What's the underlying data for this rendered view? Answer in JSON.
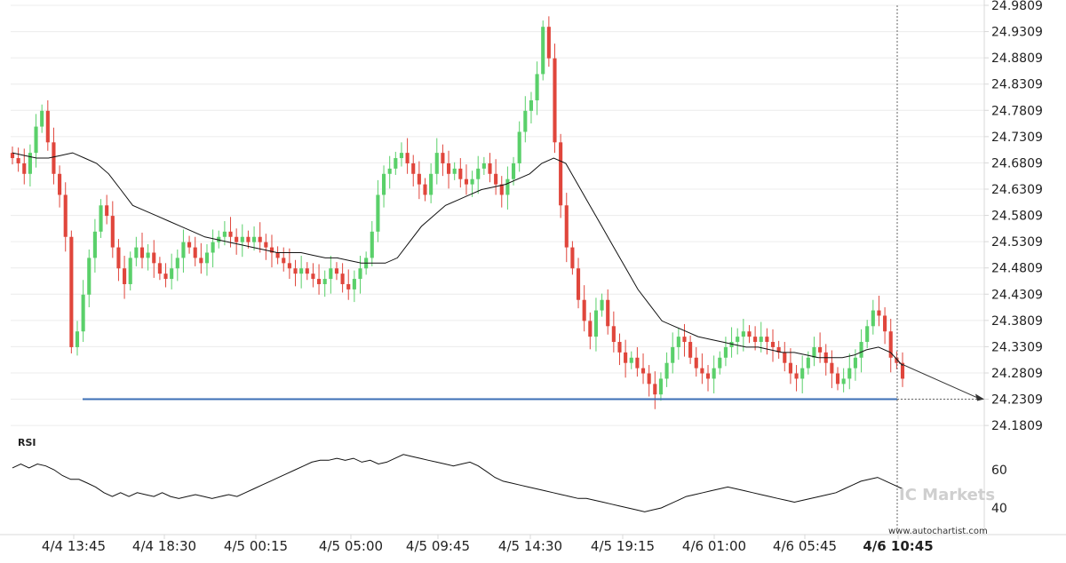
{
  "colors": {
    "up": "#5ad06a",
    "down": "#e0463c",
    "ma_line": "#111111",
    "support_line": "#3b6fb6",
    "rsi_line": "#111111",
    "grid": "#ececec",
    "axis": "#d8d8d8",
    "crosshair": "#666666"
  },
  "chart_data": {
    "type": "candlestick",
    "title": "",
    "price_axis": {
      "ticks": [
        "24.9809",
        "24.9309",
        "24.8809",
        "24.8309",
        "24.7809",
        "24.7309",
        "24.6809",
        "24.6309",
        "24.5809",
        "24.5309",
        "24.4809",
        "24.4309",
        "24.3809",
        "24.3309",
        "24.2809",
        "24.2309",
        "24.1809"
      ],
      "ylim": [
        24.1659,
        24.9809
      ],
      "grid": true,
      "position": "right"
    },
    "time_axis": {
      "ticks": [
        "4/4 13:45",
        "4/4 18:30",
        "4/5 00:15",
        "4/5 05:00",
        "4/5 09:45",
        "4/5 14:30",
        "4/5 19:15",
        "4/6 01:00",
        "4/6 05:45",
        "4/6 10:45"
      ],
      "current_label": "4/6 10:45"
    },
    "candles_close_sequence": [
      24.69,
      24.68,
      24.66,
      24.7,
      24.75,
      24.78,
      24.72,
      24.66,
      24.62,
      24.54,
      24.33,
      24.36,
      24.43,
      24.5,
      24.55,
      24.6,
      24.58,
      24.52,
      24.48,
      24.45,
      24.5,
      24.52,
      24.5,
      24.51,
      24.49,
      24.47,
      24.46,
      24.48,
      24.5,
      24.53,
      24.52,
      24.5,
      24.49,
      24.51,
      24.53,
      24.54,
      24.55,
      24.54,
      24.53,
      24.54,
      24.53,
      24.54,
      24.53,
      24.52,
      24.51,
      24.5,
      24.49,
      24.48,
      24.47,
      24.48,
      24.47,
      24.46,
      24.45,
      24.46,
      24.48,
      24.47,
      24.45,
      24.44,
      24.46,
      24.48,
      24.5,
      24.55,
      24.62,
      24.66,
      24.67,
      24.69,
      24.7,
      24.68,
      24.66,
      24.64,
      24.62,
      24.66,
      24.7,
      24.68,
      24.66,
      24.67,
      24.65,
      24.64,
      24.65,
      24.67,
      24.68,
      24.66,
      24.64,
      24.62,
      24.65,
      24.68,
      24.74,
      24.78,
      24.8,
      24.85,
      24.94,
      24.88,
      24.72,
      24.6,
      24.52,
      24.48,
      24.42,
      24.38,
      24.35,
      24.4,
      24.42,
      24.37,
      24.34,
      24.32,
      24.3,
      24.31,
      24.29,
      24.28,
      24.26,
      24.24,
      24.27,
      24.3,
      24.33,
      24.35,
      24.34,
      24.31,
      24.29,
      24.28,
      24.27,
      24.29,
      24.31,
      24.33,
      24.34,
      24.35,
      24.36,
      24.35,
      24.34,
      24.35,
      24.34,
      24.33,
      24.32,
      24.3,
      24.28,
      24.27,
      24.29,
      24.31,
      24.33,
      24.32,
      24.3,
      24.28,
      24.26,
      24.27,
      24.29,
      24.31,
      24.34,
      24.37,
      24.4,
      24.39,
      24.36,
      24.31,
      24.3,
      24.27
    ],
    "moving_average": {
      "name": "",
      "approx_values": [
        24.7,
        24.695,
        24.69,
        24.69,
        24.695,
        24.7,
        24.69,
        24.68,
        24.66,
        24.63,
        24.6,
        24.59,
        24.58,
        24.57,
        24.56,
        24.55,
        24.54,
        24.535,
        24.53,
        24.525,
        24.52,
        24.515,
        24.51,
        24.51,
        24.51,
        24.505,
        24.5,
        24.5,
        24.495,
        24.49,
        24.49,
        24.49,
        24.5,
        24.53,
        24.56,
        24.58,
        24.6,
        24.61,
        24.62,
        24.63,
        24.635,
        24.64,
        24.65,
        24.66,
        24.68,
        24.69,
        24.68,
        24.64,
        24.6,
        24.56,
        24.52,
        24.48,
        24.44,
        24.41,
        24.38,
        24.37,
        24.36,
        24.35,
        24.345,
        24.34,
        24.335,
        24.33,
        24.33,
        24.325,
        24.32,
        24.32,
        24.315,
        24.31,
        24.31,
        24.31,
        24.315,
        24.325,
        24.33,
        24.32,
        24.295
      ]
    },
    "support_level": 24.2309,
    "projection": {
      "from": 24.3,
      "to": 24.2309
    },
    "current_price_marker": 24.2309,
    "rsi": {
      "title": "RSI",
      "ticks": [
        "60",
        "40"
      ],
      "values": [
        61,
        63,
        61,
        63,
        62,
        60,
        57,
        55,
        55,
        53,
        51,
        48,
        46,
        48,
        46,
        48,
        47,
        46,
        48,
        46,
        45,
        46,
        47,
        46,
        45,
        46,
        47,
        46,
        48,
        50,
        52,
        54,
        56,
        58,
        60,
        62,
        64,
        65,
        65,
        66,
        65,
        66,
        64,
        65,
        63,
        64,
        66,
        68,
        67,
        66,
        65,
        64,
        63,
        62,
        63,
        64,
        62,
        59,
        56,
        54,
        53,
        52,
        51,
        50,
        49,
        48,
        47,
        46,
        45,
        45,
        44,
        43,
        42,
        41,
        40,
        39,
        38,
        39,
        40,
        42,
        44,
        46,
        47,
        48,
        49,
        50,
        51,
        50,
        49,
        48,
        47,
        46,
        45,
        44,
        43,
        44,
        45,
        46,
        47,
        48,
        50,
        52,
        54,
        55,
        56,
        54,
        52,
        50
      ]
    },
    "watermark": "www.autochartist.com",
    "brand": "IC Markets"
  }
}
